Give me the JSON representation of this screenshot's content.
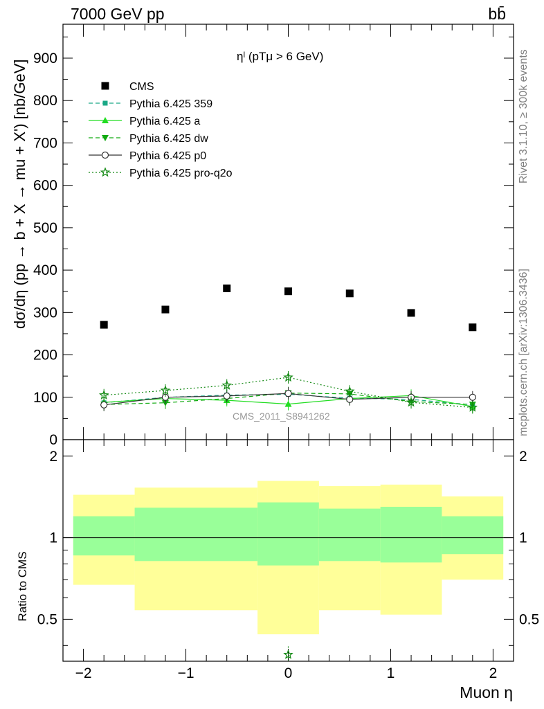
{
  "header": {
    "left": "7000 GeV pp",
    "right": "bb̄"
  },
  "side_text": {
    "rivet": "Rivet 3.1.10, ≥ 300k events",
    "mcplots": "mcplots.cern.ch [arXiv:1306.3436]"
  },
  "watermark": "CMS_2011_S8941262",
  "legend_title": "ηˡ (pTμ > 6 GeV)",
  "chart_data": [
    {
      "type": "scatter",
      "panel": "main",
      "ylabel": "dσ/dη (pp → b + X → mu + X') [nb/GeV]",
      "xlim": [
        -2.2,
        2.2
      ],
      "ylim": [
        0,
        980
      ],
      "y_ticks": [
        0,
        100,
        200,
        300,
        400,
        500,
        600,
        700,
        800,
        900
      ],
      "x": [
        -1.8,
        -1.2,
        -0.6,
        0.0,
        0.6,
        1.2,
        1.8
      ],
      "series": [
        {
          "name": "CMS",
          "color": "#000000",
          "marker": "square",
          "line": "none",
          "values": [
            271,
            307,
            357,
            350,
            345,
            299,
            265
          ]
        },
        {
          "name": "Pythia 6.425 359",
          "color": "#1aa886",
          "marker": "small-square",
          "line": "dashed",
          "values": [
            87,
            100,
            105,
            107,
            98,
            95,
            82
          ]
        },
        {
          "name": "Pythia 6.425 a",
          "color": "#22dd22",
          "marker": "triangle-up",
          "line": "solid",
          "values": [
            88,
            97,
            93,
            84,
            97,
            104,
            78
          ]
        },
        {
          "name": "Pythia 6.425 dw",
          "color": "#11aa11",
          "marker": "triangle-down",
          "line": "dashed",
          "values": [
            83,
            87,
            97,
            110,
            108,
            90,
            83
          ]
        },
        {
          "name": "Pythia 6.425 p0",
          "color": "#333333",
          "marker": "open-circle",
          "line": "solid",
          "values": [
            82,
            100,
            103,
            109,
            95,
            100,
            100
          ]
        },
        {
          "name": "Pythia 6.425 pro-q2o",
          "color": "#118811",
          "marker": "star",
          "line": "dotted",
          "values": [
            105,
            116,
            128,
            147,
            114,
            88,
            76
          ]
        }
      ]
    },
    {
      "type": "area",
      "panel": "ratio",
      "ylabel": "Ratio to CMS",
      "xlabel": "Muon η",
      "ylim": [
        0.35,
        2.3
      ],
      "x_ticks": [
        -2,
        -1,
        0,
        1,
        2
      ],
      "x_tick_labels": [
        "−2",
        "−1",
        "0",
        "1",
        "2"
      ],
      "y_ticks": [
        0.5,
        1,
        2
      ],
      "y_tick_labels": [
        "0.5",
        "1",
        "2"
      ],
      "bins": [
        [
          -2.1,
          -1.5
        ],
        [
          -1.5,
          -0.3
        ],
        [
          -0.3,
          0.3
        ],
        [
          0.3,
          0.9
        ],
        [
          0.9,
          1.5
        ],
        [
          1.5,
          2.1
        ]
      ],
      "band_outer": [
        [
          0.67,
          1.44
        ],
        [
          0.54,
          1.53
        ],
        [
          0.44,
          1.62
        ],
        [
          0.54,
          1.55
        ],
        [
          0.52,
          1.57
        ],
        [
          0.7,
          1.42
        ]
      ],
      "band_inner": [
        [
          0.86,
          1.2
        ],
        [
          0.82,
          1.29
        ],
        [
          0.79,
          1.35
        ],
        [
          0.82,
          1.28
        ],
        [
          0.81,
          1.3
        ],
        [
          0.87,
          1.2
        ]
      ],
      "outer_color": "#ffff99",
      "inner_color": "#99ff99",
      "reference": 1,
      "marker_x": 0.0,
      "marker_value": 0.37
    }
  ]
}
